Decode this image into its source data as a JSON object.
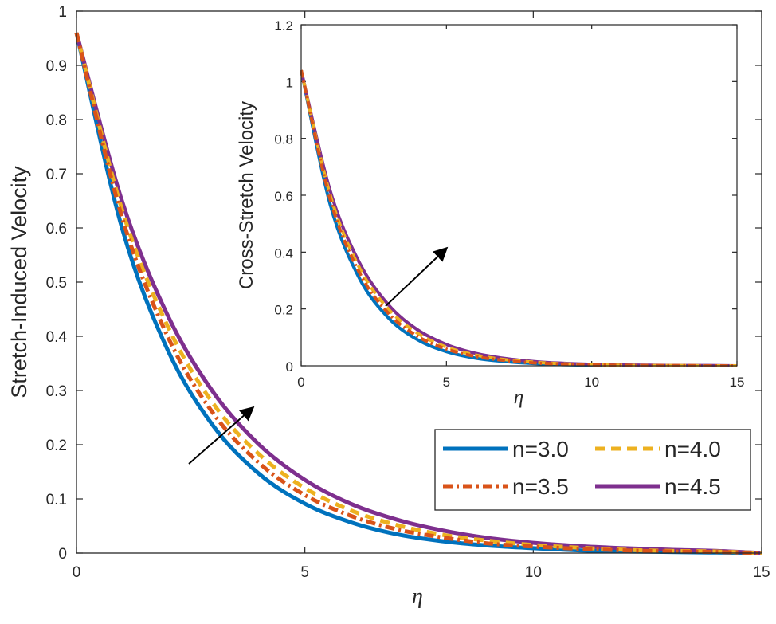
{
  "chart_data": [
    {
      "type": "line",
      "title": "",
      "xlabel": "η",
      "ylabel": "Stretch-Induced Velocity",
      "xlim": [
        0,
        15
      ],
      "ylim": [
        0,
        1
      ],
      "xticks": [
        0,
        5,
        10,
        15
      ],
      "yticks": [
        0,
        0.1,
        0.2,
        0.3,
        0.4,
        0.5,
        0.6,
        0.7,
        0.8,
        0.9,
        1
      ],
      "x": [
        0,
        1,
        2,
        3,
        4,
        5,
        6,
        7,
        8,
        9,
        10,
        11,
        12,
        13,
        14,
        15
      ],
      "series": [
        {
          "name": "n=3.0",
          "color": "#0072BD",
          "style": "solid",
          "values": [
            0.96,
            0.599,
            0.374,
            0.234,
            0.146,
            0.091,
            0.057,
            0.035,
            0.022,
            0.014,
            0.009,
            0.005,
            0.003,
            0.002,
            0.001,
            0.0
          ]
        },
        {
          "name": "n=3.5",
          "color": "#D95319",
          "style": "dashdot",
          "values": [
            0.96,
            0.619,
            0.399,
            0.257,
            0.166,
            0.107,
            0.069,
            0.044,
            0.029,
            0.018,
            0.012,
            0.008,
            0.005,
            0.003,
            0.002,
            0.0
          ]
        },
        {
          "name": "n=4.0",
          "color": "#EDB120",
          "style": "dashed",
          "values": [
            0.96,
            0.633,
            0.418,
            0.275,
            0.182,
            0.12,
            0.079,
            0.052,
            0.034,
            0.023,
            0.015,
            0.01,
            0.006,
            0.004,
            0.003,
            0.0
          ]
        },
        {
          "name": "n=4.5",
          "color": "#7E2F8E",
          "style": "solid",
          "values": [
            0.96,
            0.649,
            0.438,
            0.296,
            0.2,
            0.135,
            0.091,
            0.062,
            0.042,
            0.028,
            0.019,
            0.013,
            0.009,
            0.006,
            0.004,
            0.0
          ]
        }
      ],
      "legend": [
        "n=3.0",
        "n=4.0",
        "n=3.5",
        "n=4.5"
      ],
      "legend_location": "lower-right",
      "arrow_annotation": "increasing n",
      "grid": false
    },
    {
      "type": "line",
      "title": "",
      "inset": true,
      "xlabel": "η",
      "ylabel": "Cross-Stretch Velocity",
      "xlim": [
        0,
        15
      ],
      "ylim": [
        0,
        1.2
      ],
      "xticks": [
        0,
        5,
        10,
        15
      ],
      "yticks": [
        0,
        0.2,
        0.4,
        0.6,
        0.8,
        1,
        1.2
      ],
      "x": [
        0,
        1,
        2,
        3,
        4,
        5,
        6,
        7,
        8,
        9,
        10,
        11,
        12,
        13,
        14,
        15
      ],
      "series": [
        {
          "name": "n=3.0",
          "color": "#0072BD",
          "style": "solid",
          "values": [
            1.04,
            0.567,
            0.309,
            0.169,
            0.092,
            0.05,
            0.027,
            0.015,
            0.008,
            0.004,
            0.002,
            0.001,
            0.001,
            0.0,
            0.0,
            0.0
          ]
        },
        {
          "name": "n=3.5",
          "color": "#D95319",
          "style": "dashdot",
          "values": [
            1.04,
            0.585,
            0.329,
            0.185,
            0.104,
            0.059,
            0.033,
            0.019,
            0.01,
            0.006,
            0.003,
            0.002,
            0.001,
            0.001,
            0.0,
            0.0
          ]
        },
        {
          "name": "n=4.0",
          "color": "#EDB120",
          "style": "dashed",
          "values": [
            1.04,
            0.6,
            0.346,
            0.2,
            0.115,
            0.066,
            0.038,
            0.022,
            0.013,
            0.007,
            0.004,
            0.002,
            0.001,
            0.001,
            0.0,
            0.0
          ]
        },
        {
          "name": "n=4.5",
          "color": "#7E2F8E",
          "style": "solid",
          "values": [
            1.04,
            0.615,
            0.364,
            0.215,
            0.127,
            0.075,
            0.044,
            0.026,
            0.015,
            0.009,
            0.005,
            0.003,
            0.002,
            0.001,
            0.001,
            0.0
          ]
        }
      ],
      "arrow_annotation": "increasing n",
      "grid": false
    }
  ]
}
